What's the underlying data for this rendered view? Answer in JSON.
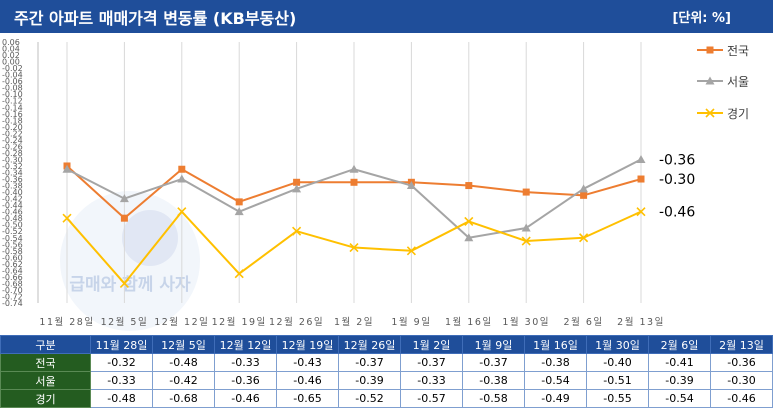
{
  "header": {
    "title": "주간 아파트 매매가격 변동률 (KB부동산)",
    "unit": "[단위: %]"
  },
  "watermark": {
    "text": "급매와 함께 사자"
  },
  "colors": {
    "header_bg": "#1f4e9a",
    "table_header_bg": "#1f4e9a",
    "table_row_header_bg": "#245c20"
  },
  "chart_data": {
    "type": "line",
    "x": [
      "11월 28일",
      "12월 5일",
      "12월 12일",
      "12월 19일",
      "12월 26일",
      "1월 2일",
      "1월 9일",
      "1월 16일",
      "1월 30일",
      "2월 6일",
      "2월 13일"
    ],
    "series": [
      {
        "name": "전국",
        "color": "#ed7d31",
        "marker": "square",
        "values": [
          -0.32,
          -0.48,
          -0.33,
          -0.43,
          -0.37,
          -0.37,
          -0.37,
          -0.38,
          -0.4,
          -0.41,
          -0.36
        ]
      },
      {
        "name": "서울",
        "color": "#a5a5a5",
        "marker": "triangle",
        "values": [
          -0.33,
          -0.42,
          -0.36,
          -0.46,
          -0.39,
          -0.33,
          -0.38,
          -0.54,
          -0.51,
          -0.39,
          -0.3
        ]
      },
      {
        "name": "경기",
        "color": "#ffc000",
        "marker": "x",
        "values": [
          -0.48,
          -0.68,
          -0.46,
          -0.65,
          -0.52,
          -0.57,
          -0.58,
          -0.49,
          -0.55,
          -0.54,
          -0.46
        ]
      }
    ],
    "ylim": [
      -0.74,
      0.06
    ],
    "ytick_step": 0.02,
    "grid": "vertical",
    "legend": "right",
    "end_labels": [
      "-0.30",
      "-0.36",
      "-0.46"
    ]
  },
  "table": {
    "corner": "구분",
    "headers": [
      "11월 28일",
      "12월 5일",
      "12월 12일",
      "12월 19일",
      "12월 26일",
      "1월 2일",
      "1월 9일",
      "1월 16일",
      "1월 30일",
      "2월 6일",
      "2월 13일"
    ],
    "rows": [
      {
        "label": "전국",
        "cells": [
          "-0.32",
          "-0.48",
          "-0.33",
          "-0.43",
          "-0.37",
          "-0.37",
          "-0.37",
          "-0.38",
          "-0.40",
          "-0.41",
          "-0.36"
        ]
      },
      {
        "label": "서울",
        "cells": [
          "-0.33",
          "-0.42",
          "-0.36",
          "-0.46",
          "-0.39",
          "-0.33",
          "-0.38",
          "-0.54",
          "-0.51",
          "-0.39",
          "-0.30"
        ]
      },
      {
        "label": "경기",
        "cells": [
          "-0.48",
          "-0.68",
          "-0.46",
          "-0.65",
          "-0.52",
          "-0.57",
          "-0.58",
          "-0.49",
          "-0.55",
          "-0.54",
          "-0.46"
        ]
      }
    ]
  }
}
